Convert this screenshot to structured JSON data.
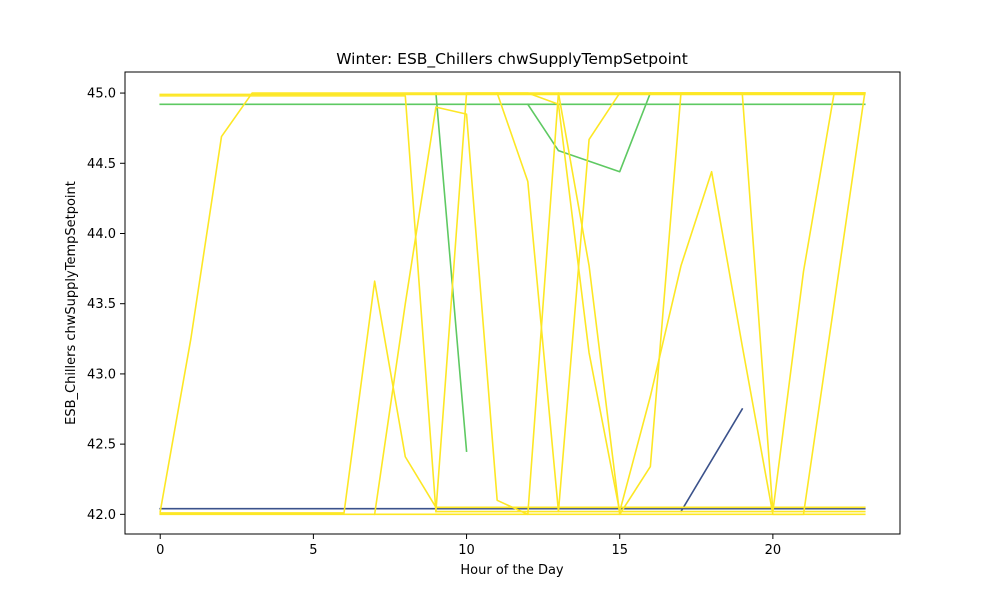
{
  "chart_data": {
    "type": "line",
    "title": "Winter: ESB_Chillers chwSupplyTempSetpoint",
    "xlabel": "Hour of the Day",
    "ylabel": "ESB_Chillers chwSupplyTempSetpoint",
    "xlim": [
      -1.15,
      24.15
    ],
    "ylim": [
      41.86,
      45.15
    ],
    "xticks": [
      0,
      5,
      10,
      15,
      20
    ],
    "yticks": [
      42.0,
      42.5,
      43.0,
      43.5,
      44.0,
      44.5,
      45.0
    ],
    "ytick_labels": [
      "42.0",
      "42.5",
      "43.0",
      "43.5",
      "44.0",
      "44.5",
      "45.0"
    ],
    "grid": false,
    "legend": "none",
    "series": [
      {
        "color": "#3b528b",
        "points": [
          [
            0,
            42.04
          ],
          [
            1,
            42.04
          ],
          [
            2,
            42.04
          ],
          [
            3,
            42.04
          ],
          [
            4,
            42.04
          ],
          [
            5,
            42.04
          ],
          [
            6,
            42.04
          ],
          [
            7,
            42.04
          ],
          [
            8,
            42.04
          ],
          [
            9,
            42.04
          ],
          [
            10,
            42.04
          ],
          [
            11,
            42.04
          ],
          [
            12,
            42.04
          ],
          [
            13,
            42.04
          ],
          [
            14,
            42.04
          ],
          [
            15,
            42.04
          ],
          [
            16,
            42.04
          ],
          [
            17,
            42.04
          ],
          [
            18,
            42.04
          ],
          [
            19,
            42.04
          ],
          [
            20,
            42.04
          ],
          [
            21,
            42.04
          ],
          [
            22,
            42.04
          ],
          [
            23,
            42.04
          ]
        ]
      },
      {
        "color": "#3b528b",
        "points": [
          [
            17,
            42.02
          ],
          [
            19,
            42.75
          ]
        ]
      },
      {
        "color": "#5ec962",
        "points": [
          [
            0,
            44.92
          ],
          [
            1,
            44.92
          ],
          [
            2,
            44.92
          ],
          [
            3,
            44.92
          ],
          [
            4,
            44.92
          ],
          [
            5,
            44.92
          ],
          [
            6,
            44.92
          ],
          [
            7,
            44.92
          ],
          [
            8,
            44.92
          ],
          [
            9,
            44.92
          ],
          [
            10,
            44.92
          ],
          [
            11,
            44.92
          ],
          [
            12,
            44.92
          ],
          [
            13,
            44.92
          ],
          [
            14,
            44.92
          ],
          [
            15,
            44.92
          ],
          [
            16,
            44.92
          ],
          [
            17,
            44.92
          ],
          [
            18,
            44.92
          ],
          [
            19,
            44.92
          ],
          [
            20,
            44.92
          ],
          [
            21,
            44.92
          ],
          [
            22,
            44.92
          ],
          [
            23,
            44.92
          ]
        ]
      },
      {
        "color": "#5ec962",
        "points": [
          [
            9,
            45.0
          ],
          [
            10,
            42.45
          ]
        ]
      },
      {
        "color": "#5ec962",
        "points": [
          [
            12,
            44.92
          ],
          [
            13,
            44.59
          ],
          [
            15,
            44.44
          ],
          [
            16,
            45.0
          ]
        ]
      },
      {
        "color": "#fde725",
        "points": [
          [
            0,
            42.02
          ],
          [
            1,
            43.25
          ],
          [
            2,
            44.69
          ],
          [
            3,
            45.0
          ],
          [
            4,
            45.0
          ],
          [
            5,
            45.0
          ],
          [
            6,
            45.0
          ],
          [
            7,
            45.0
          ],
          [
            8,
            45.0
          ],
          [
            9,
            45.0
          ],
          [
            10,
            45.0
          ],
          [
            11,
            45.0
          ],
          [
            12,
            45.0
          ],
          [
            13,
            45.0
          ],
          [
            14,
            45.0
          ],
          [
            15,
            45.0
          ],
          [
            16,
            45.0
          ],
          [
            17,
            45.0
          ],
          [
            18,
            45.0
          ],
          [
            19,
            45.0
          ],
          [
            20,
            45.0
          ],
          [
            21,
            45.0
          ],
          [
            22,
            45.0
          ],
          [
            23,
            45.0
          ]
        ]
      },
      {
        "color": "#fde725",
        "points": [
          [
            0,
            44.99
          ],
          [
            1,
            44.99
          ],
          [
            2,
            44.99
          ],
          [
            3,
            44.99
          ],
          [
            4,
            44.99
          ],
          [
            5,
            44.99
          ],
          [
            6,
            44.99
          ],
          [
            7,
            44.99
          ],
          [
            8,
            44.99
          ],
          [
            9,
            44.99
          ],
          [
            10,
            44.99
          ],
          [
            11,
            44.99
          ],
          [
            12,
            44.99
          ],
          [
            13,
            44.99
          ],
          [
            14,
            44.99
          ],
          [
            15,
            44.99
          ],
          [
            16,
            44.99
          ],
          [
            17,
            44.99
          ],
          [
            18,
            44.99
          ],
          [
            19,
            44.99
          ],
          [
            20,
            44.99
          ],
          [
            21,
            44.99
          ],
          [
            22,
            44.99
          ],
          [
            23,
            44.99
          ]
        ]
      },
      {
        "color": "#fde725",
        "points": [
          [
            0,
            44.98
          ],
          [
            1,
            44.98
          ],
          [
            2,
            44.98
          ],
          [
            3,
            44.98
          ],
          [
            4,
            44.98
          ],
          [
            5,
            44.98
          ],
          [
            6,
            44.98
          ],
          [
            7,
            44.98
          ],
          [
            8,
            44.98
          ],
          [
            9,
            42.02
          ],
          [
            10,
            42.02
          ],
          [
            11,
            42.02
          ],
          [
            12,
            42.02
          ],
          [
            13,
            42.02
          ],
          [
            14,
            42.02
          ],
          [
            15,
            42.02
          ],
          [
            16,
            42.02
          ],
          [
            17,
            42.02
          ],
          [
            18,
            42.02
          ],
          [
            19,
            42.02
          ],
          [
            20,
            42.02
          ],
          [
            21,
            42.02
          ],
          [
            22,
            42.02
          ],
          [
            23,
            42.02
          ]
        ]
      },
      {
        "color": "#fde725",
        "points": [
          [
            0,
            42.01
          ],
          [
            1,
            42.01
          ],
          [
            2,
            42.01
          ],
          [
            3,
            42.01
          ],
          [
            4,
            42.01
          ],
          [
            5,
            42.01
          ],
          [
            6,
            42.01
          ],
          [
            7,
            43.66
          ],
          [
            8,
            42.41
          ],
          [
            9,
            42.05
          ],
          [
            10,
            42.05
          ],
          [
            11,
            42.05
          ],
          [
            12,
            42.05
          ],
          [
            13,
            42.05
          ],
          [
            14,
            42.05
          ],
          [
            15,
            42.05
          ],
          [
            16,
            42.05
          ],
          [
            17,
            42.05
          ],
          [
            18,
            42.05
          ],
          [
            19,
            42.05
          ],
          [
            20,
            42.05
          ],
          [
            21,
            42.05
          ],
          [
            22,
            42.05
          ],
          [
            23,
            42.05
          ]
        ]
      },
      {
        "color": "#fde725",
        "points": [
          [
            0,
            42.0
          ],
          [
            1,
            42.0
          ],
          [
            2,
            42.0
          ],
          [
            3,
            42.0
          ],
          [
            4,
            42.0
          ],
          [
            5,
            42.0
          ],
          [
            6,
            42.0
          ],
          [
            7,
            42.0
          ],
          [
            8,
            43.5
          ],
          [
            9,
            44.9
          ],
          [
            10,
            44.85
          ],
          [
            11,
            42.1
          ],
          [
            12,
            42.0
          ],
          [
            13,
            42.0
          ],
          [
            14,
            42.0
          ],
          [
            15,
            42.0
          ],
          [
            16,
            42.0
          ],
          [
            17,
            42.0
          ],
          [
            18,
            42.0
          ],
          [
            19,
            42.0
          ],
          [
            20,
            42.0
          ],
          [
            21,
            42.0
          ],
          [
            22,
            42.0
          ],
          [
            23,
            42.0
          ]
        ]
      },
      {
        "color": "#fde725",
        "points": [
          [
            7,
            42.0
          ],
          [
            8,
            42.0
          ],
          [
            9,
            42.0
          ],
          [
            10,
            42.0
          ],
          [
            11,
            42.0
          ],
          [
            12,
            42.0
          ],
          [
            13,
            45.0
          ],
          [
            14,
            43.77
          ],
          [
            15,
            42.0
          ],
          [
            16,
            42.34
          ],
          [
            17,
            45.0
          ],
          [
            18,
            45.0
          ],
          [
            19,
            45.0
          ],
          [
            20,
            45.0
          ],
          [
            21,
            45.0
          ],
          [
            22,
            45.0
          ],
          [
            23,
            45.0
          ]
        ]
      },
      {
        "color": "#fde725",
        "points": [
          [
            9,
            42.02
          ],
          [
            10,
            45.0
          ],
          [
            11,
            45.0
          ],
          [
            12,
            44.37
          ],
          [
            13,
            42.02
          ],
          [
            14,
            44.67
          ],
          [
            15,
            45.0
          ],
          [
            16,
            45.0
          ],
          [
            17,
            45.0
          ],
          [
            18,
            45.0
          ],
          [
            19,
            45.0
          ],
          [
            20,
            45.0
          ],
          [
            21,
            45.0
          ],
          [
            22,
            45.0
          ],
          [
            23,
            45.0
          ]
        ]
      },
      {
        "color": "#fde725",
        "points": [
          [
            11,
            45.0
          ],
          [
            12,
            45.0
          ],
          [
            13,
            44.92
          ],
          [
            14,
            43.15
          ],
          [
            15,
            42.02
          ],
          [
            16,
            42.84
          ],
          [
            17,
            43.77
          ],
          [
            18,
            44.44
          ],
          [
            19,
            43.2
          ],
          [
            20,
            42.0
          ],
          [
            21,
            42.0
          ],
          [
            22,
            43.5
          ],
          [
            23,
            45.0
          ]
        ]
      },
      {
        "color": "#fde725",
        "points": [
          [
            16,
            45.0
          ],
          [
            17,
            45.0
          ],
          [
            18,
            45.0
          ],
          [
            19,
            45.0
          ],
          [
            20,
            42.02
          ],
          [
            21,
            43.73
          ],
          [
            22,
            45.0
          ],
          [
            23,
            45.0
          ]
        ]
      }
    ]
  }
}
